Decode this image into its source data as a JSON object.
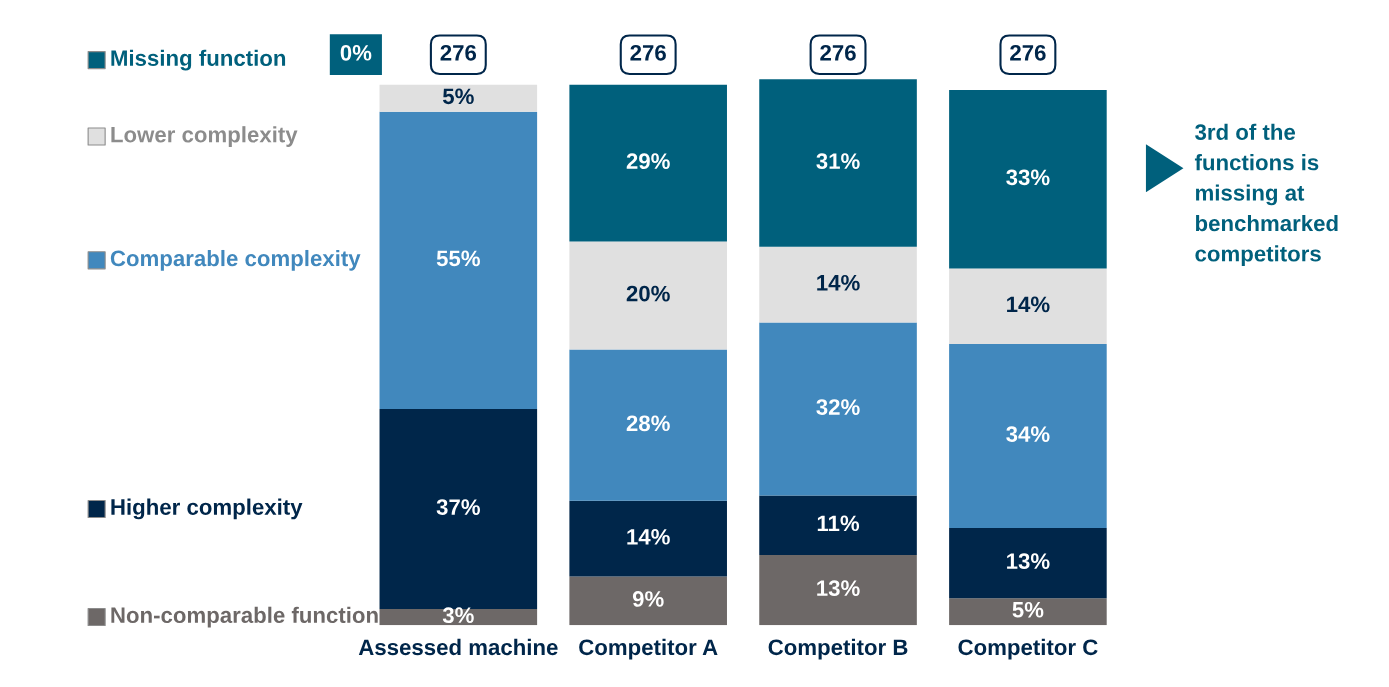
{
  "chart_data": {
    "type": "bar",
    "stacked": true,
    "legend": "left",
    "data_labels": true,
    "categories": [
      "Assessed machine",
      "Competitor A",
      "Competitor B",
      "Competitor C"
    ],
    "series": [
      {
        "name": "Non-comparable function",
        "color": "#6d6867",
        "values": [
          3,
          9,
          13,
          5
        ],
        "value_labels": [
          "3%",
          "9%",
          "13%",
          "5%"
        ]
      },
      {
        "name": "Higher complexity",
        "color": "#00264a",
        "values": [
          37,
          14,
          11,
          13
        ],
        "value_labels": [
          "37%",
          "14%",
          "11%",
          "13%"
        ]
      },
      {
        "name": "Comparable complexity",
        "color": "#4188bd",
        "values": [
          55,
          28,
          32,
          34
        ],
        "value_labels": [
          "55%",
          "28%",
          "32%",
          "34%"
        ]
      },
      {
        "name": "Lower complexity",
        "color": "#e0e0e0",
        "values": [
          5,
          20,
          14,
          14
        ],
        "value_labels": [
          "5%",
          "20%",
          "14%",
          "14%"
        ]
      },
      {
        "name": "Missing function",
        "color": "#00607c",
        "values": [
          0,
          29,
          31,
          33
        ],
        "value_labels": [
          null,
          "29%",
          "31%",
          "33%"
        ]
      }
    ],
    "annotations": [
      "3rd of the functions is missing at benchmarked competitors",
      "0%",
      "276",
      "276",
      "276",
      "276"
    ]
  }
}
